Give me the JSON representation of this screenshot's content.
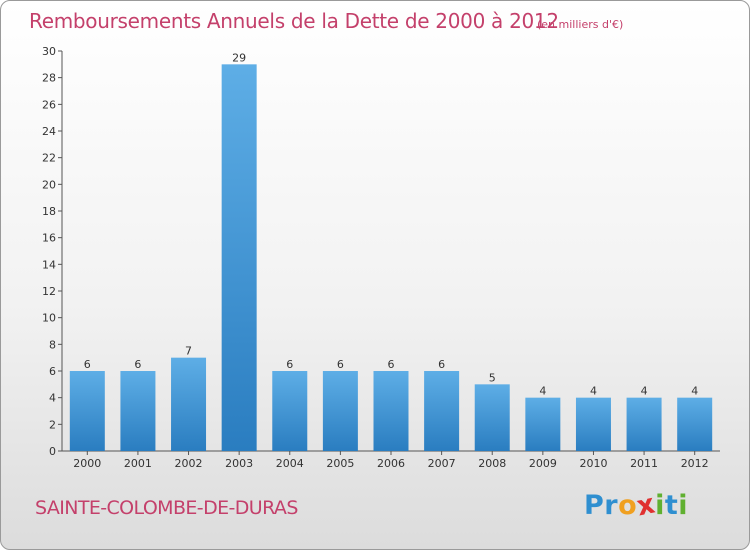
{
  "header": {
    "title": "Remboursements Annuels de la Dette de 2000 à 2012",
    "unit": "(en milliers d'€)"
  },
  "footer": {
    "commune": "SAINTE-COLOMBE-DE-DURAS",
    "logo_letters": [
      "P",
      "r",
      "o",
      "x",
      "i",
      "t",
      "i"
    ]
  },
  "colors": {
    "title": "#c4406b",
    "bar_light": "#5eaee6",
    "bar_dark": "#2a7dc0",
    "logo": [
      "#2f8fd0",
      "#2f8fd0",
      "#f0a020",
      "#e03030",
      "#60b030",
      "#2f8fd0",
      "#60b030"
    ]
  },
  "chart_data": {
    "type": "bar",
    "title": "Remboursements Annuels de la Dette de 2000 à 2012",
    "xlabel": "",
    "ylabel": "",
    "categories": [
      "2000",
      "2001",
      "2002",
      "2003",
      "2004",
      "2005",
      "2006",
      "2007",
      "2008",
      "2009",
      "2010",
      "2011",
      "2012"
    ],
    "values": [
      6,
      6,
      7,
      29,
      6,
      6,
      6,
      6,
      5,
      4,
      4,
      4,
      4
    ],
    "ylim": [
      0,
      30
    ],
    "yticks": [
      0,
      2,
      4,
      6,
      8,
      10,
      12,
      14,
      16,
      18,
      20,
      22,
      24,
      26,
      28,
      30
    ],
    "grid": false,
    "legend": "none"
  }
}
